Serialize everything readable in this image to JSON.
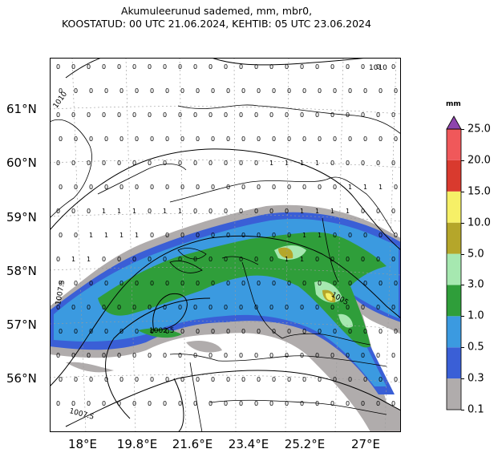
{
  "title": {
    "line1": "Akumuleerunud sademed, mm, mbr0,",
    "line2": "KOOSTATUD: 00 UTC 21.06.2024, KEHTIB: 05 UTC 23.06.2024"
  },
  "lat_labels": [
    "61°N",
    "60°N",
    "59°N",
    "58°N",
    "57°N",
    "56°N"
  ],
  "lon_labels": [
    "18°E",
    "19.8°E",
    "21.6°E",
    "23.4°E",
    "25.2°E",
    "27°E"
  ],
  "colorbar": {
    "unit": "mm",
    "levels": [
      "0.1",
      "0.3",
      "0.5",
      "1.0",
      "3.0",
      "5.0",
      "10.0",
      "15.0",
      "20.0",
      "25.0"
    ],
    "colors": [
      "#b0acac",
      "#3a5fd6",
      "#3b9ae0",
      "#2f9e3a",
      "#a6e8b0",
      "#b5a62a",
      "#f6f067",
      "#d93a2e",
      "#f0585a",
      "#8e44ad"
    ]
  },
  "pressure_labels": [
    "1010",
    "1010",
    "1007.5",
    "1002.5",
    "1005",
    "1007.5"
  ]
}
